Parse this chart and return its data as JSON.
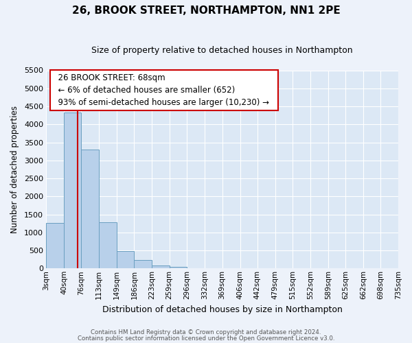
{
  "title": "26, BROOK STREET, NORTHAMPTON, NN1 2PE",
  "subtitle": "Size of property relative to detached houses in Northampton",
  "xlabel": "Distribution of detached houses by size in Northampton",
  "ylabel": "Number of detached properties",
  "bar_color": "#b8d0ea",
  "bar_edge_color": "#6a9fc0",
  "background_color": "#dce8f5",
  "fig_background": "#edf2fa",
  "grid_color": "#ffffff",
  "vline_x": 68,
  "vline_color": "#cc0000",
  "bin_edges": [
    3,
    40,
    76,
    113,
    149,
    186,
    223,
    259,
    296,
    332,
    369,
    406,
    442,
    479,
    515,
    552,
    589,
    625,
    662,
    698,
    735
  ],
  "bin_labels": [
    "3sqm",
    "40sqm",
    "76sqm",
    "113sqm",
    "149sqm",
    "186sqm",
    "223sqm",
    "259sqm",
    "296sqm",
    "332sqm",
    "369sqm",
    "406sqm",
    "442sqm",
    "479sqm",
    "515sqm",
    "552sqm",
    "589sqm",
    "625sqm",
    "662sqm",
    "698sqm",
    "735sqm"
  ],
  "bar_heights": [
    1270,
    4330,
    3300,
    1290,
    480,
    230,
    75,
    50,
    0,
    0,
    0,
    0,
    0,
    0,
    0,
    0,
    0,
    0,
    0,
    0
  ],
  "ylim": [
    0,
    5500
  ],
  "yticks": [
    0,
    500,
    1000,
    1500,
    2000,
    2500,
    3000,
    3500,
    4000,
    4500,
    5000,
    5500
  ],
  "annotation_title": "26 BROOK STREET: 68sqm",
  "annotation_line1": "← 6% of detached houses are smaller (652)",
  "annotation_line2": "93% of semi-detached houses are larger (10,230) →",
  "annotation_box_color": "#ffffff",
  "annotation_border_color": "#cc0000",
  "footer_line1": "Contains HM Land Registry data © Crown copyright and database right 2024.",
  "footer_line2": "Contains public sector information licensed under the Open Government Licence v3.0."
}
